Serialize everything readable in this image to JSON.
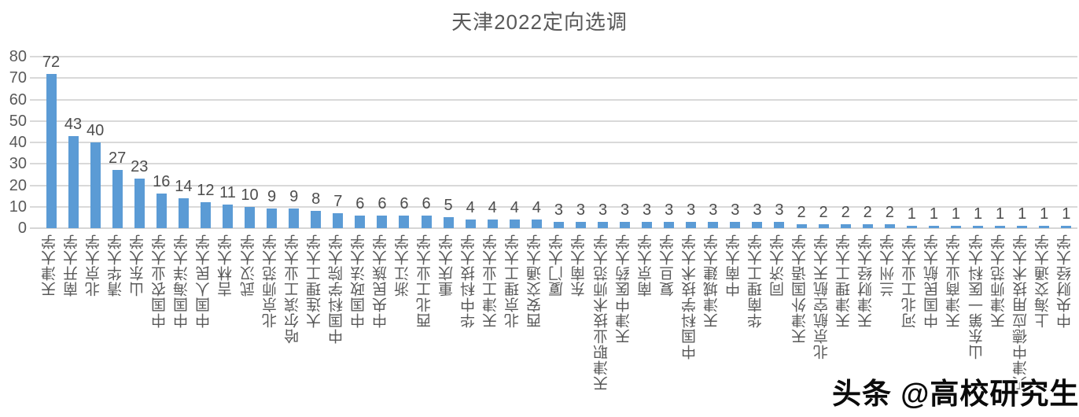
{
  "title": "天津2022定向选调",
  "watermark": "头条 @高校研究生",
  "chart_data": {
    "type": "bar",
    "title": "天津2022定向选调",
    "categories": [
      "天津大学",
      "南开大学",
      "北京大学",
      "清华大学",
      "山东大学",
      "中国农业大学",
      "中国海洋大学",
      "中国人民大学",
      "吉林大学",
      "武汉大学",
      "北京师范大学",
      "哈尔滨工业大学",
      "大连理工大学",
      "中国科学院大学",
      "中国政法大学",
      "中央民族大学",
      "浙江大学",
      "西北工业大学",
      "重庆大学",
      "华中科技大学",
      "天津工业大学",
      "北京理工大学",
      "西安交通大学",
      "厦门大学",
      "东南大学",
      "天津职业技术师范大学",
      "天津中医药大学",
      "南京大学",
      "复旦大学",
      "中国科学技术大学",
      "天津城建大学",
      "中南大学",
      "华南理工大学",
      "同济大学",
      "天津外国语大学",
      "北京航空航天大学",
      "天津理工大学",
      "天津财经大学",
      "兰州大学",
      "河北工业大学",
      "中国民航大学",
      "天津商业大学",
      "山东第一医科大学",
      "天津师范大学",
      "天津中德应用技术大学",
      "上海交通大学",
      "中央财经大学"
    ],
    "values": [
      72,
      43,
      40,
      27,
      23,
      16,
      14,
      12,
      11,
      10,
      9,
      9,
      8,
      7,
      6,
      6,
      6,
      6,
      5,
      4,
      4,
      4,
      4,
      3,
      3,
      3,
      3,
      3,
      3,
      3,
      3,
      3,
      3,
      3,
      2,
      2,
      2,
      2,
      2,
      1,
      1,
      1,
      1,
      1,
      1,
      1,
      1
    ],
    "xlabel": "",
    "ylabel": "",
    "ylim": [
      0,
      80
    ],
    "yticks": [
      0,
      10,
      20,
      30,
      40,
      50,
      60,
      70,
      80
    ],
    "grid": true,
    "legend": "none",
    "data_labels": true,
    "bar_color": "#5b9bd5",
    "grid_color": "#d9d9d9",
    "text_color": "#595959"
  }
}
